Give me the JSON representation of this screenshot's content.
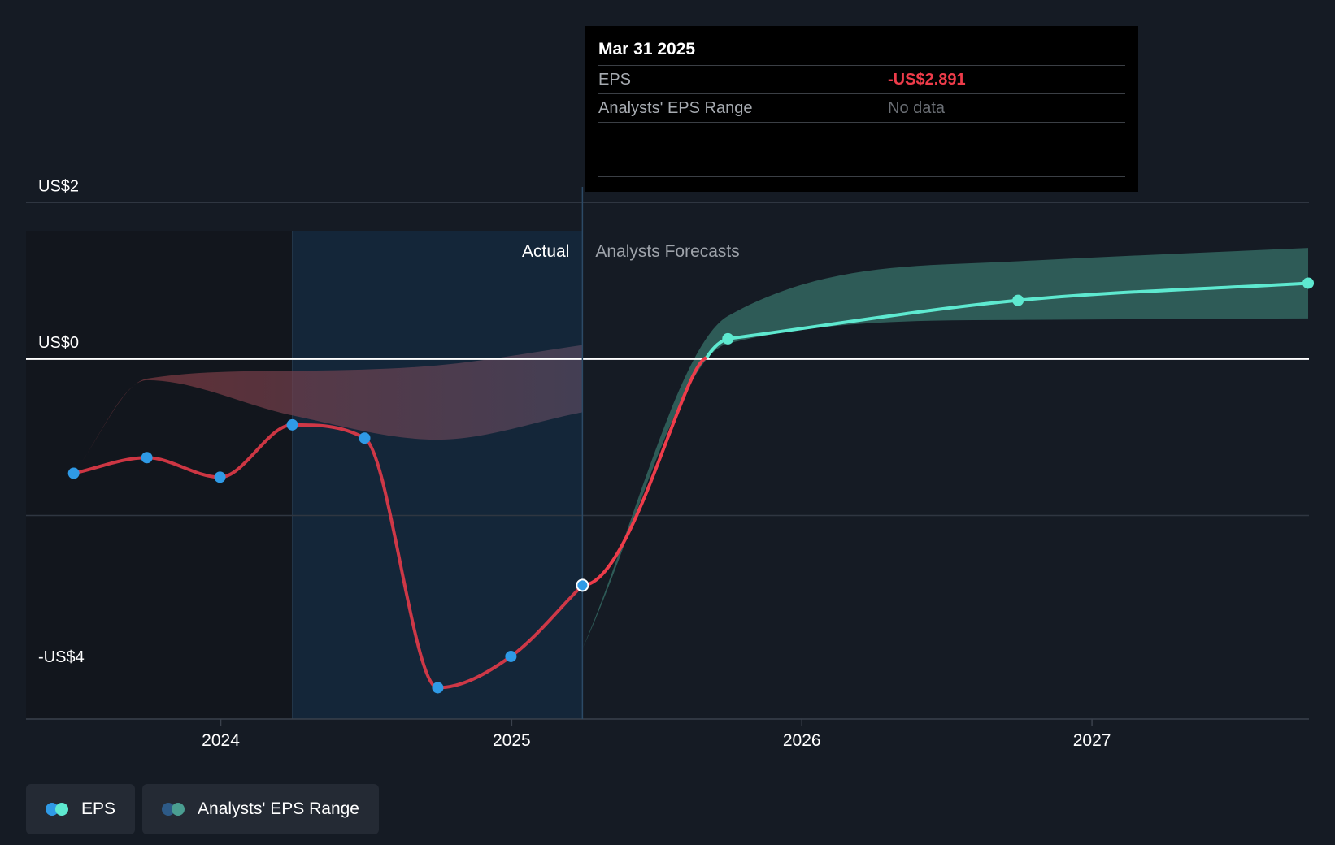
{
  "chart_data": {
    "type": "line",
    "y_ticks": [
      {
        "value": 2,
        "label": "US$2"
      },
      {
        "value": 0,
        "label": "US$0"
      },
      {
        "value": -4,
        "label": "-US$4"
      }
    ],
    "ylim": [
      -4.6,
      2.2
    ],
    "x_ticks": [
      {
        "value": "2024-01-01",
        "label": "2024"
      },
      {
        "value": "2025-01-01",
        "label": "2025"
      },
      {
        "value": "2026-01-01",
        "label": "2026"
      },
      {
        "value": "2027-01-01",
        "label": "2027"
      }
    ],
    "xlim": [
      "2023-05-01",
      "2027-10-01"
    ],
    "highlight_region": [
      "2024-03-31",
      "2025-03-31"
    ],
    "divider_date": "2025-03-31",
    "region_labels": {
      "actual": "Actual",
      "forecast": "Analysts Forecasts"
    },
    "series": [
      {
        "name": "EPS",
        "kind": "actual",
        "points": [
          {
            "x": "2023-06-30",
            "y": -1.46
          },
          {
            "x": "2023-09-30",
            "y": -1.26
          },
          {
            "x": "2023-12-31",
            "y": -1.51
          },
          {
            "x": "2024-03-31",
            "y": -0.84
          },
          {
            "x": "2024-06-30",
            "y": -1.01
          },
          {
            "x": "2024-09-30",
            "y": -4.2
          },
          {
            "x": "2024-12-31",
            "y": -3.8
          },
          {
            "x": "2025-03-31",
            "y": -2.891
          }
        ]
      },
      {
        "name": "EPS",
        "kind": "forecast",
        "points": [
          {
            "x": "2025-09-30",
            "y": 0.26
          },
          {
            "x": "2026-09-30",
            "y": 0.75
          },
          {
            "x": "2027-09-30",
            "y": 0.97
          }
        ]
      },
      {
        "name": "Analysts' EPS Range",
        "kind": "band-past",
        "points": [
          {
            "x": "2023-06-30",
            "low": -1.46,
            "high": -1.46
          },
          {
            "x": "2023-09-30",
            "low": -0.27,
            "high": -0.25
          },
          {
            "x": "2024-03-31",
            "low": -0.72,
            "high": -0.15
          },
          {
            "x": "2024-09-30",
            "low": -1.03,
            "high": -0.08
          },
          {
            "x": "2025-03-31",
            "low": -0.68,
            "high": 0.18
          }
        ]
      },
      {
        "name": "Analysts' EPS Range",
        "kind": "band-forecast",
        "points": [
          {
            "x": "2025-03-31",
            "low": -3.7,
            "high": -3.7
          },
          {
            "x": "2025-09-30",
            "low": 0.2,
            "high": 0.55
          },
          {
            "x": "2026-09-30",
            "low": 0.5,
            "high": 1.25
          },
          {
            "x": "2027-09-30",
            "low": 0.52,
            "high": 1.42
          }
        ]
      }
    ],
    "legend": [
      {
        "label": "EPS",
        "colors": [
          "#2f9ae6",
          "#5ee9d0"
        ]
      },
      {
        "label": "Analysts' EPS Range",
        "colors": [
          "#2d5a87",
          "#4a9e91"
        ]
      }
    ],
    "colors": {
      "eps_negative": "#ee3c4a",
      "eps_forecast": "#5ee9d0",
      "point_actual": "#2f9ae6",
      "band_past": "#8a3a3f",
      "band_forecast": "#2f5f5b",
      "highlight": "#14283c"
    }
  },
  "tooltip": {
    "date": "Mar 31 2025",
    "rows": [
      {
        "label": "EPS",
        "value": "-US$2.891"
      },
      {
        "label": "Analysts' EPS Range",
        "value": "No data"
      }
    ]
  }
}
